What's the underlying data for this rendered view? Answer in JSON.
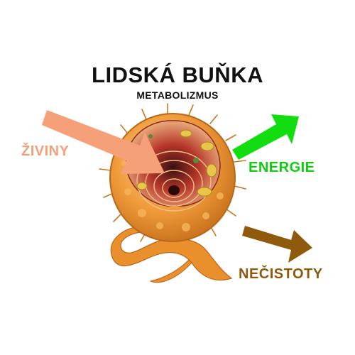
{
  "title": "LIDSKÁ BUŇKA",
  "subtitle": "METABOLIZMUS",
  "labels": {
    "input": "ŽIVINY",
    "energy": "ENERGIE",
    "waste": "NEČISTOTY"
  },
  "colors": {
    "input": "#f6a07a",
    "energy": "#11dd11",
    "waste": "#8f5a0b",
    "cell_body": "#e9902c",
    "cell_inner": "#b6362a",
    "organelle": "#e8c64a"
  }
}
